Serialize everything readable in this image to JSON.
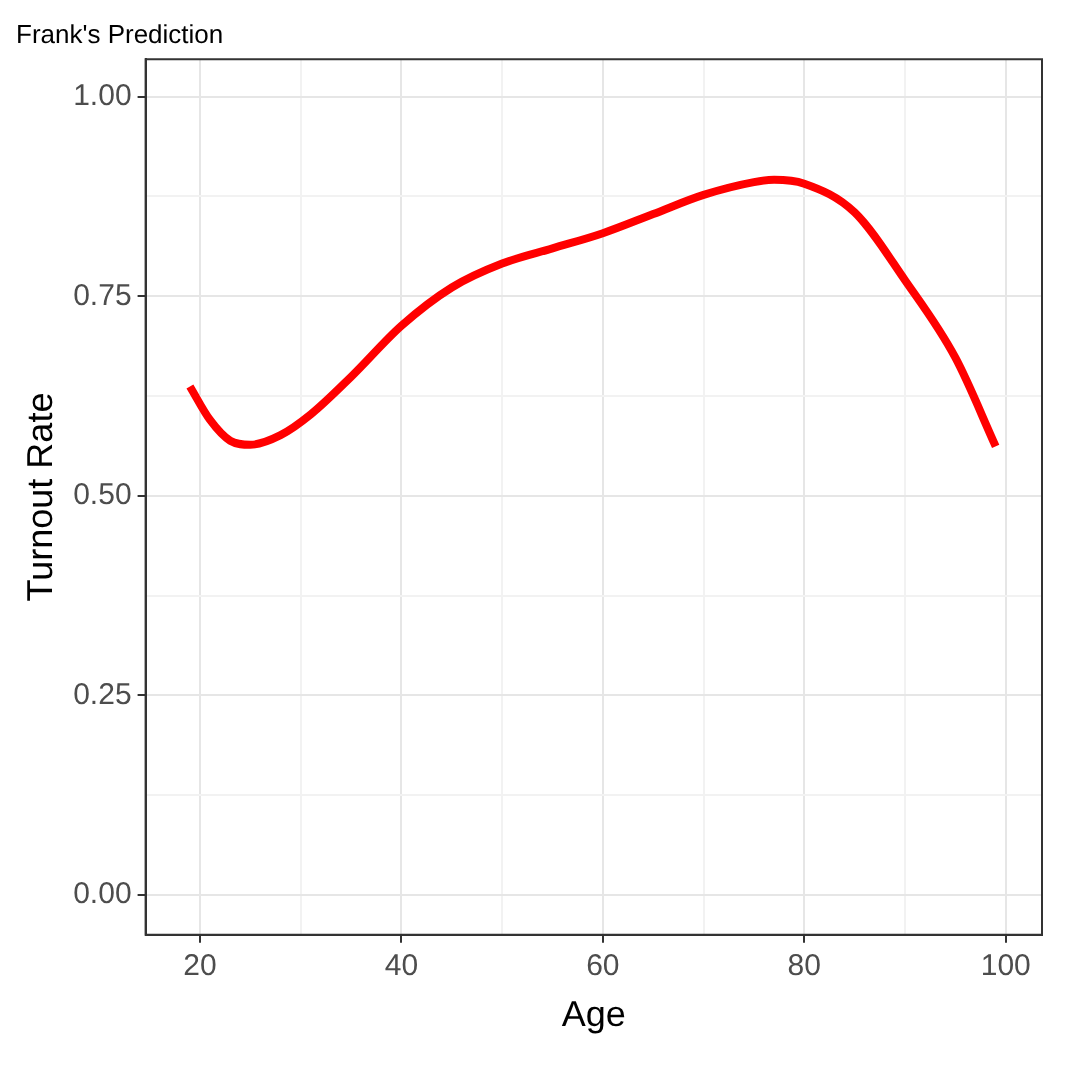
{
  "chart_data": {
    "type": "line",
    "title": "Frank's Prediction",
    "xlabel": "Age",
    "ylabel": "Turnout Rate",
    "x": [
      19,
      21,
      23,
      25,
      28,
      31,
      35,
      40,
      45,
      50,
      55,
      60,
      65,
      70,
      75,
      77,
      80,
      85,
      90,
      95,
      99
    ],
    "series": [
      {
        "color": "#ff0000",
        "values": [
          0.637,
          0.595,
          0.569,
          0.564,
          0.576,
          0.602,
          0.649,
          0.713,
          0.761,
          0.791,
          0.81,
          0.829,
          0.853,
          0.877,
          0.893,
          0.896,
          0.891,
          0.855,
          0.77,
          0.673,
          0.562
        ]
      }
    ],
    "xlim": [
      14.6,
      103.6
    ],
    "ylim": [
      -0.05,
      1.047
    ],
    "xticks": [
      20,
      {
        "value": 30,
        "label": null
      },
      40,
      {
        "value": 50,
        "label": null
      },
      60,
      {
        "value": 70,
        "label": null
      },
      80,
      {
        "value": 90,
        "label": null
      },
      100
    ],
    "yticks": [
      {
        "value": 0,
        "label": "0.00"
      },
      {
        "value": 0.125,
        "label": null
      },
      {
        "value": 0.25,
        "label": "0.25"
      },
      {
        "value": 0.375,
        "label": null
      },
      {
        "value": 0.5,
        "label": "0.50"
      },
      {
        "value": 0.625,
        "label": null
      },
      {
        "value": 0.75,
        "label": "0.75"
      },
      {
        "value": 0.875,
        "label": null
      },
      {
        "value": 1,
        "label": "1.00"
      }
    ],
    "grid": true,
    "legend": false,
    "marker": "none",
    "line_style": "solid"
  }
}
